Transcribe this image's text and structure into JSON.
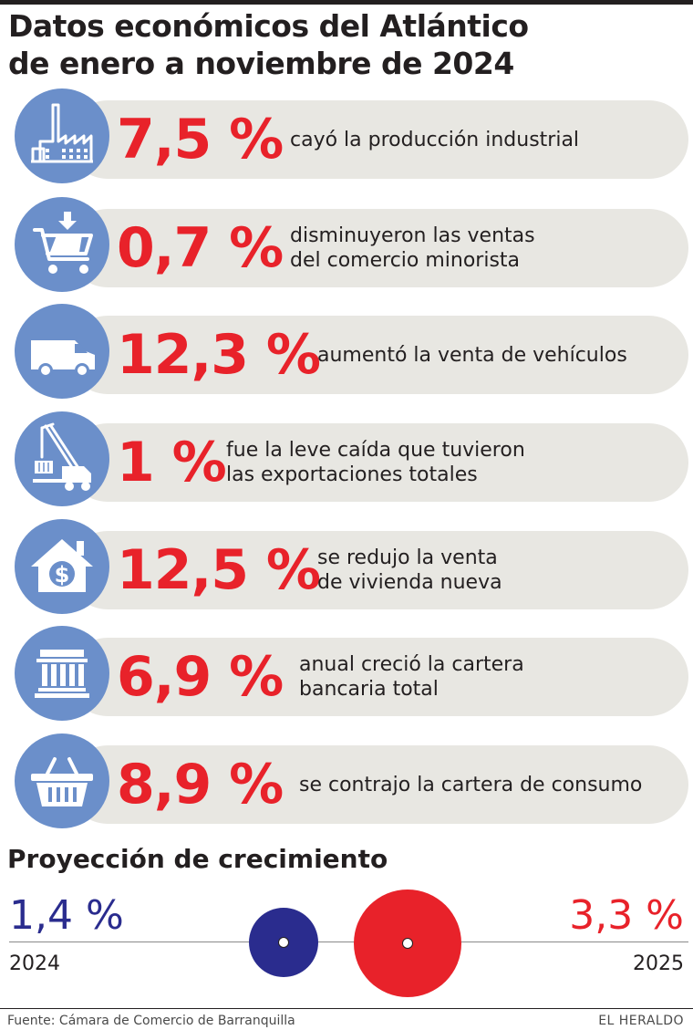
{
  "title": {
    "line1": "Datos económicos del Atlántico",
    "line2": "de enero a noviembre de 2024"
  },
  "colors": {
    "accent_red": "#e8222a",
    "icon_blue": "#6b8fca",
    "pill_gray": "#e8e7e2",
    "navy": "#2a2c8e"
  },
  "indicators": [
    {
      "icon": "factory-icon",
      "value": "7,5 %",
      "desc_line1": "cayó la producción industrial",
      "desc_line2": ""
    },
    {
      "icon": "shopping-cart-icon",
      "value": "0,7 %",
      "desc_line1": "disminuyeron las ventas",
      "desc_line2": "del comercio minorista"
    },
    {
      "icon": "van-icon",
      "value": "12,3 %",
      "desc_line1": "aumentó la venta de vehículos",
      "desc_line2": ""
    },
    {
      "icon": "crane-truck-icon",
      "value": "1 %",
      "desc_line1": "fue la leve caída que tuvieron",
      "desc_line2": "las exportaciones totales"
    },
    {
      "icon": "house-dollar-icon",
      "value": "12,5 %",
      "desc_line1": "se redujo la venta",
      "desc_line2": "de vivienda nueva"
    },
    {
      "icon": "bank-icon",
      "value": "6,9 %",
      "desc_line1": "anual creció la cartera",
      "desc_line2": "bancaria total"
    },
    {
      "icon": "basket-icon",
      "value": "8,9 %",
      "desc_line1": "se contrajo la cartera de consumo",
      "desc_line2": ""
    }
  ],
  "projection": {
    "title": "Proyección de crecimiento",
    "year_2024": {
      "value": "1,4 %",
      "year": "2024"
    },
    "year_2025": {
      "value": "3,3 %",
      "year": "2025"
    }
  },
  "footer": {
    "source": "Fuente: Cámara de Comercio de Barranquilla",
    "brand": "EL HERALDO"
  }
}
